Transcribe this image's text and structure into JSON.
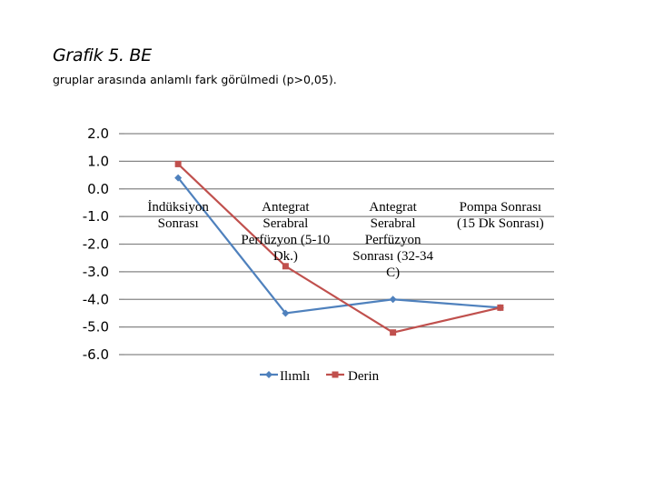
{
  "chart_data": {
    "type": "line",
    "title": "Grafik 5. BE",
    "subtitle": "gruplar arasında anlamlı fark görülmedi (p>0,05).",
    "categories": [
      [
        "İndüksiyon",
        "Sonrası"
      ],
      [
        "Antegrat",
        "Serabral",
        "Perfüzyon (5-10",
        "Dk.)"
      ],
      [
        "Antegrat",
        "Serabral",
        "Perfüzyon",
        "Sonrası (32-34",
        "C)"
      ],
      [
        "Pompa Sonrası",
        "(15 Dk Sonrası)"
      ]
    ],
    "y_ticks": [
      "2.0",
      "1.0",
      "0.0",
      "-1.0",
      "-2.0",
      "-3.0",
      "-4.0",
      "-5.0",
      "-6.0"
    ],
    "ylim": [
      -6,
      2
    ],
    "grid": true,
    "legend_position": "bottom",
    "series": [
      {
        "name": "Ilımlı",
        "color": "#4f81bd",
        "marker": "diamond",
        "values": [
          0.4,
          -4.5,
          -4.0,
          -4.3
        ]
      },
      {
        "name": "Derin",
        "color": "#c0504d",
        "marker": "square",
        "values": [
          0.9,
          -2.8,
          -5.2,
          -4.3
        ]
      }
    ]
  }
}
